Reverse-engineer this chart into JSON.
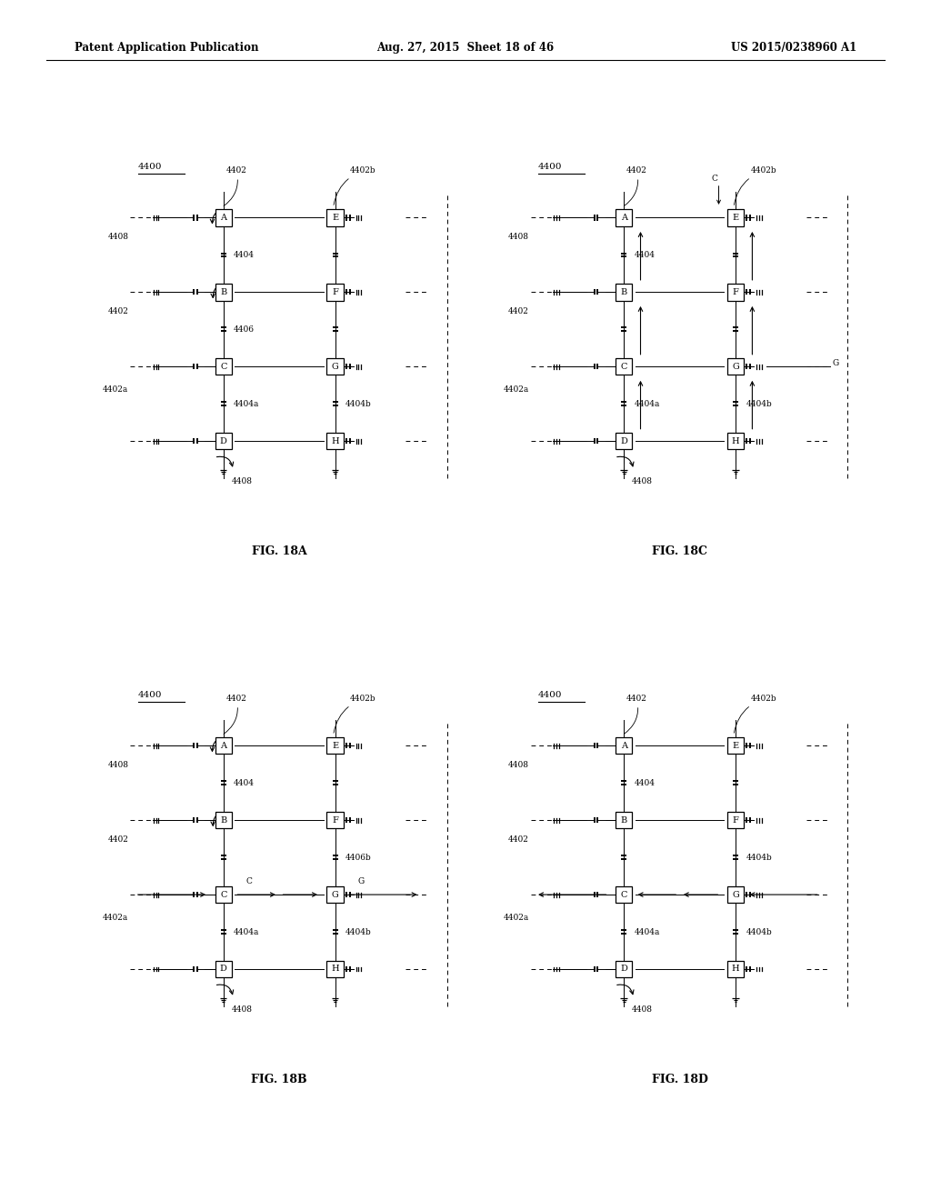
{
  "header": {
    "left": "Patent Application Publication",
    "center": "Aug. 27, 2015  Sheet 18 of 46",
    "right": "US 2015/0238960 A1"
  },
  "background": "#ffffff",
  "panels": [
    {
      "label": "FIG. 18A",
      "idx": 0
    },
    {
      "label": "FIG. 18C",
      "idx": 2
    },
    {
      "label": "FIG. 18B",
      "idx": 1
    },
    {
      "label": "FIG. 18D",
      "idx": 3
    }
  ]
}
